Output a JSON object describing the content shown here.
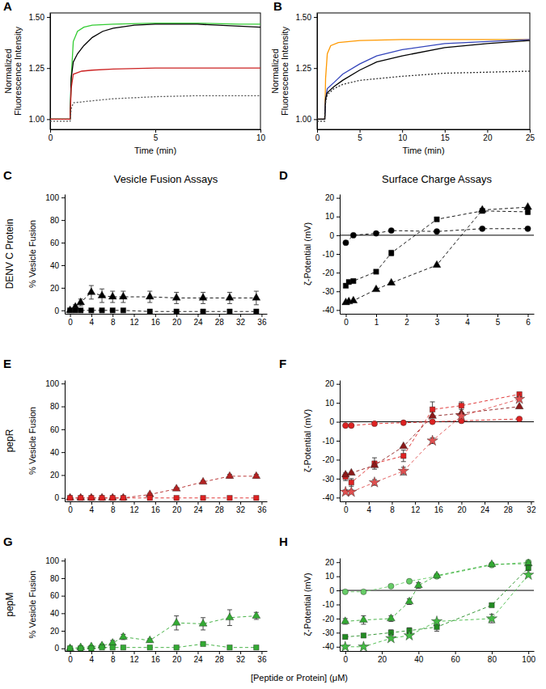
{
  "chart_data": [
    {
      "panel": "A",
      "type": "line",
      "xlabel": "Time (min)",
      "ylabel": "Normalized Fluorescence Intensity",
      "xlim": [
        0,
        10
      ],
      "ylim": [
        0.95,
        1.52
      ],
      "xticks": [
        0,
        5,
        10
      ],
      "yticks": [
        {
          "value": 1,
          "label": "1.00"
        },
        1.25,
        {
          "value": 1.5,
          "label": "1.50"
        }
      ],
      "series": [
        {
          "color": "#33cc33",
          "line_style": "solid",
          "x": [
            0,
            0.5,
            0.95,
            1.0,
            1.1,
            1.3,
            1.6,
            2,
            3,
            5,
            7,
            9,
            10
          ],
          "values": [
            1.0,
            1.0,
            1.0,
            1.2,
            1.38,
            1.43,
            1.45,
            1.46,
            1.465,
            1.47,
            1.47,
            1.465,
            1.465
          ]
        },
        {
          "color": "#000000",
          "line_style": "solid",
          "x": [
            0,
            0.95,
            1.0,
            1.1,
            1.3,
            1.6,
            2,
            2.5,
            3,
            4,
            5,
            7,
            9,
            10
          ],
          "values": [
            1.0,
            1.0,
            1.2,
            1.28,
            1.32,
            1.36,
            1.4,
            1.43,
            1.445,
            1.46,
            1.465,
            1.465,
            1.455,
            1.45
          ]
        },
        {
          "color": "#cc2222",
          "line_style": "solid",
          "x": [
            0,
            0.95,
            1.0,
            1.1,
            1.5,
            2,
            3,
            5,
            7,
            10
          ],
          "values": [
            1.0,
            1.0,
            1.15,
            1.22,
            1.235,
            1.24,
            1.245,
            1.25,
            1.25,
            1.25
          ]
        },
        {
          "color": "#555555",
          "line_style": "dotted",
          "x": [
            0,
            0.95,
            1.0,
            1.1,
            2,
            3,
            5,
            7,
            10
          ],
          "values": [
            0.99,
            0.99,
            1.05,
            1.08,
            1.09,
            1.1,
            1.11,
            1.115,
            1.115
          ]
        }
      ]
    },
    {
      "panel": "B",
      "type": "line",
      "xlabel": "Time (min)",
      "ylabel": "Normalized Fluorescence Intensity",
      "xlim": [
        0,
        25
      ],
      "ylim": [
        0.95,
        1.52
      ],
      "xticks": [
        0,
        5,
        10,
        15,
        20,
        25
      ],
      "yticks": [
        {
          "value": 1,
          "label": "1.00"
        },
        1.25,
        {
          "value": 1.5,
          "label": "1.50"
        }
      ],
      "series": [
        {
          "color": "#ff9900",
          "line_style": "solid",
          "x": [
            0,
            0.9,
            1.0,
            1.2,
            1.6,
            2.5,
            5,
            10,
            15,
            20,
            25
          ],
          "values": [
            1.0,
            1.0,
            1.2,
            1.32,
            1.36,
            1.375,
            1.385,
            1.39,
            1.39,
            1.39,
            1.39
          ]
        },
        {
          "color": "#3344bb",
          "line_style": "solid",
          "x": [
            0,
            0.9,
            1.0,
            1.2,
            2,
            3,
            5,
            7,
            10,
            15,
            20,
            25
          ],
          "values": [
            1.0,
            1.0,
            1.1,
            1.15,
            1.18,
            1.22,
            1.27,
            1.31,
            1.34,
            1.37,
            1.38,
            1.39
          ]
        },
        {
          "color": "#000000",
          "line_style": "solid",
          "x": [
            0,
            0.9,
            1.0,
            1.2,
            2,
            3,
            5,
            7,
            10,
            15,
            20,
            25
          ],
          "values": [
            1.0,
            1.0,
            1.1,
            1.13,
            1.16,
            1.19,
            1.24,
            1.28,
            1.31,
            1.35,
            1.37,
            1.385
          ]
        },
        {
          "color": "#333333",
          "line_style": "dotted",
          "x": [
            0,
            0.9,
            1.0,
            1.2,
            2,
            3,
            5,
            10,
            15,
            20,
            25
          ],
          "values": [
            0.99,
            0.99,
            1.08,
            1.12,
            1.15,
            1.17,
            1.19,
            1.21,
            1.225,
            1.23,
            1.235
          ]
        }
      ]
    },
    {
      "panel": "C",
      "type": "scatter",
      "column_title": "Vesicle Fusion Assays",
      "row_label": "DENV C Protein",
      "ylabel": "% Vesicle Fusion",
      "xlim": [
        -1,
        37
      ],
      "ylim": [
        -3,
        103
      ],
      "xticks": [
        0,
        4,
        8,
        12,
        16,
        20,
        24,
        28,
        32,
        36
      ],
      "yticks": [
        0,
        20,
        40,
        60,
        80,
        100
      ],
      "series": [
        {
          "color": "#000000",
          "marker": "triangle",
          "line_style": "dashed",
          "x": [
            0,
            1,
            2,
            4,
            6,
            8,
            10,
            15,
            20,
            25,
            30,
            35
          ],
          "values": [
            0,
            3,
            7,
            16,
            13,
            12,
            12,
            12,
            11,
            11,
            11,
            11
          ],
          "errors": [
            1,
            2,
            3,
            6,
            6,
            5,
            5,
            5,
            5,
            5,
            5,
            6
          ]
        },
        {
          "color": "#000000",
          "marker": "square",
          "line_style": "dashed",
          "x": [
            0,
            1,
            2,
            4,
            6,
            8,
            10,
            15,
            20,
            25,
            30,
            35
          ],
          "values": [
            0,
            0,
            0,
            0,
            0,
            0,
            0,
            -1,
            -1,
            -1,
            -1,
            -1
          ]
        }
      ]
    },
    {
      "panel": "D",
      "type": "scatter",
      "column_title": "Surface Charge Assays",
      "ylabel": "ζ-Potential (mV)",
      "hline": 0,
      "xlim": [
        -0.2,
        6.2
      ],
      "ylim": [
        -42,
        22
      ],
      "xticks": [
        0,
        1,
        2,
        3,
        4,
        5,
        6
      ],
      "yticks": [
        -40,
        -30,
        -20,
        -10,
        0,
        10,
        20
      ],
      "series": [
        {
          "color": "#000000",
          "marker": "circle",
          "line_style": "dashed",
          "x": [
            0,
            0.25,
            1,
            1.5,
            3,
            4.5,
            6
          ],
          "values": [
            -4,
            0,
            1,
            2.5,
            2,
            3.5,
            3.5
          ]
        },
        {
          "color": "#000000",
          "marker": "square",
          "line_style": "dashed",
          "x": [
            0,
            0.1,
            0.25,
            1,
            1.5,
            3,
            4.5,
            6
          ],
          "values": [
            -27,
            -25,
            -24.5,
            -19.5,
            -9.5,
            8.5,
            13,
            12.5
          ],
          "errors": [
            1,
            1,
            1,
            1,
            1.5,
            1,
            1,
            1.5
          ]
        },
        {
          "color": "#000000",
          "marker": "triangle",
          "line_style": "dashed",
          "x": [
            0,
            0.1,
            0.25,
            1,
            1.5,
            3,
            4.5,
            6
          ],
          "values": [
            -36,
            -35.5,
            -35,
            -29,
            -25.5,
            -16,
            13.5,
            15
          ]
        }
      ]
    },
    {
      "panel": "E",
      "type": "scatter",
      "row_label": "pepR",
      "ylabel": "% Vesicle Fusion",
      "xlim": [
        -1,
        37
      ],
      "ylim": [
        -3,
        103
      ],
      "xticks": [
        0,
        4,
        8,
        12,
        16,
        20,
        24,
        28,
        32,
        36
      ],
      "yticks": [
        0,
        20,
        40,
        60,
        80,
        100
      ],
      "series": [
        {
          "color": "#b22222",
          "marker": "triangle",
          "line_style": "dashed",
          "x": [
            0,
            2,
            4,
            6,
            8,
            10,
            15,
            20,
            25,
            30,
            35
          ],
          "values": [
            0,
            0,
            0,
            0,
            0,
            0,
            3,
            8,
            14,
            19,
            19
          ],
          "errors": [
            0.5,
            0.5,
            0.5,
            0.5,
            0.5,
            0.5,
            1,
            1,
            1,
            1.5,
            1.5
          ]
        },
        {
          "color": "#dd2222",
          "marker": "square",
          "line_style": "dashed",
          "x": [
            0,
            2,
            4,
            6,
            8,
            10,
            15,
            20,
            25,
            30,
            35
          ],
          "values": [
            0,
            0,
            0,
            0,
            0,
            0,
            0,
            0,
            0,
            0,
            0
          ]
        }
      ]
    },
    {
      "panel": "F",
      "type": "scatter",
      "ylabel": "ζ-Potential (mV)",
      "hline": 0,
      "xlim": [
        -1,
        32.5
      ],
      "ylim": [
        -42,
        22
      ],
      "xticks": [
        0,
        4,
        8,
        12,
        16,
        20,
        24,
        28,
        32
      ],
      "yticks": [
        -40,
        -30,
        -20,
        -10,
        0,
        10,
        20
      ],
      "series": [
        {
          "color": "#dd2222",
          "marker": "circle",
          "line_style": "dashed",
          "x": [
            0,
            1,
            5,
            10,
            15,
            20,
            30
          ],
          "values": [
            -2,
            -2,
            -1,
            -0.5,
            0,
            0.5,
            1.5
          ]
        },
        {
          "color": "#dd2222",
          "marker": "square",
          "line_style": "dashed",
          "x": [
            0,
            1,
            5,
            10,
            15,
            20,
            30
          ],
          "values": [
            -29,
            -32,
            -22,
            -18,
            6.5,
            8.5,
            14.5
          ],
          "errors": [
            2,
            2,
            3,
            3,
            4,
            2,
            1
          ]
        },
        {
          "color": "#8b1a1a",
          "marker": "triangle",
          "line_style": "dashed",
          "x": [
            0,
            1,
            5,
            10,
            15,
            20,
            30
          ],
          "values": [
            -28,
            -27,
            -23,
            -13,
            3,
            4.5,
            8
          ]
        },
        {
          "color": "#e05050",
          "marker": "star",
          "line_style": "dashed",
          "x": [
            0,
            1,
            5,
            10,
            15,
            20,
            30
          ],
          "values": [
            -37,
            -37,
            -32,
            -26,
            -10,
            3,
            12
          ],
          "errors": [
            1,
            1,
            1.5,
            2,
            1.5,
            1,
            1
          ]
        }
      ]
    },
    {
      "panel": "G",
      "type": "scatter",
      "row_label": "pepM",
      "ylabel": "% Vesicle Fusion",
      "xlabel": "[Peptide or Protein] (μM)",
      "xlim": [
        -1,
        37
      ],
      "ylim": [
        -3,
        103
      ],
      "xticks": [
        0,
        4,
        8,
        12,
        16,
        20,
        24,
        28,
        32,
        36
      ],
      "yticks": [
        0,
        20,
        40,
        60,
        80,
        100
      ],
      "series": [
        {
          "color": "#33aa33",
          "marker": "triangle",
          "line_style": "dashed",
          "x": [
            0,
            2,
            4,
            6,
            8,
            10,
            15,
            20,
            25,
            30,
            35
          ],
          "values": [
            0,
            1,
            2,
            3,
            6,
            13,
            9,
            29,
            28,
            35,
            37
          ],
          "errors": [
            0.5,
            1,
            1,
            2,
            3,
            3,
            2,
            8,
            7,
            9,
            4
          ]
        },
        {
          "color": "#33aa33",
          "marker": "square",
          "line_style": "dashed",
          "x": [
            0,
            2,
            4,
            6,
            8,
            10,
            15,
            20,
            25,
            30,
            35
          ],
          "values": [
            0,
            0,
            0,
            1,
            1,
            1,
            1,
            1,
            5,
            1,
            1
          ],
          "errors": [
            0.5,
            0.5,
            0.5,
            0.5,
            0.5,
            0.5,
            0.5,
            1,
            2,
            0.5,
            0.5
          ]
        }
      ]
    },
    {
      "panel": "H",
      "type": "scatter",
      "ylabel": "ζ-Potential (mV)",
      "hline": 0,
      "xlim": [
        -3,
        103
      ],
      "ylim": [
        -43,
        23
      ],
      "xticks": [
        0,
        20,
        40,
        60,
        80,
        100
      ],
      "yticks": [
        -40,
        -30,
        -20,
        -10,
        0,
        10,
        20
      ],
      "series": [
        {
          "color": "#66cc66",
          "marker": "circle",
          "line_style": "dashed",
          "x": [
            0,
            10,
            25,
            35,
            50,
            80,
            100
          ],
          "values": [
            -1,
            -1,
            3,
            6.5,
            10,
            18,
            20
          ]
        },
        {
          "color": "#33aa33",
          "marker": "triangle",
          "line_style": "dashed",
          "x": [
            0,
            10,
            25,
            35,
            40,
            50,
            80,
            100
          ],
          "values": [
            -22,
            -21,
            -20,
            -8,
            3.5,
            10.5,
            18.5,
            19
          ],
          "errors": [
            2,
            3,
            2,
            2,
            2,
            1,
            1,
            1
          ]
        },
        {
          "color": "#228b22",
          "marker": "square",
          "line_style": "dashed",
          "x": [
            0,
            10,
            25,
            35,
            50,
            80,
            100
          ],
          "values": [
            -33,
            -32,
            -30,
            -28.5,
            -26,
            -10.5,
            16
          ],
          "errors": [
            1,
            1,
            2,
            2,
            3,
            1,
            2
          ]
        },
        {
          "color": "#44bb44",
          "marker": "star",
          "line_style": "dashed",
          "x": [
            0,
            10,
            25,
            35,
            50,
            80,
            100
          ],
          "values": [
            -40,
            -40,
            -34,
            -32,
            -22,
            -20,
            11
          ],
          "errors": [
            1,
            1,
            1,
            1,
            1,
            3,
            1
          ]
        }
      ]
    }
  ]
}
